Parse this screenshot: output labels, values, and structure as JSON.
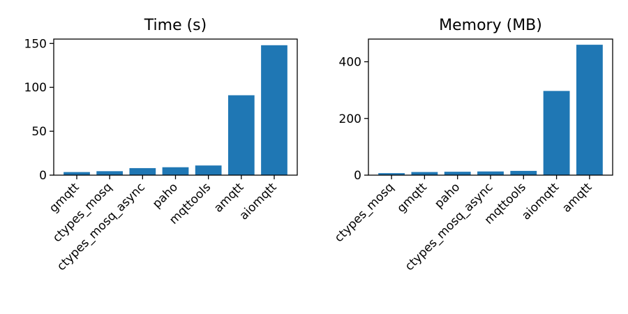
{
  "chart_data": [
    {
      "type": "bar",
      "title": "Time (s)",
      "categories": [
        "gmqtt",
        "ctypes_mosq",
        "ctypes_mosq_async",
        "paho",
        "mqttools",
        "amqtt",
        "aiomqtt"
      ],
      "values": [
        3.5,
        4.5,
        8,
        9,
        11,
        91,
        148
      ],
      "ylim": [
        0,
        155
      ],
      "yticks": [
        0,
        50,
        100,
        150
      ],
      "color": "#1f77b4",
      "grid": false
    },
    {
      "type": "bar",
      "title": "Memory (MB)",
      "categories": [
        "ctypes_mosq",
        "gmqtt",
        "paho",
        "ctypes_mosq_async",
        "mqttools",
        "aiomqtt",
        "amqtt"
      ],
      "values": [
        7,
        11,
        12,
        13,
        15,
        297,
        460
      ],
      "ylim": [
        0,
        480
      ],
      "yticks": [
        0,
        200,
        400
      ],
      "color": "#1f77b4",
      "grid": false
    }
  ]
}
